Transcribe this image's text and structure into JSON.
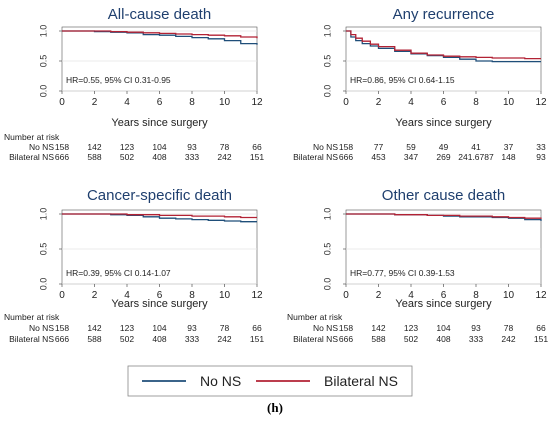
{
  "figure": {
    "caption": "(h)"
  },
  "legend": {
    "position": "bottom-center",
    "items": [
      {
        "label": "No NS",
        "color": "#1f4e79"
      },
      {
        "label": "Bilateral NS",
        "color": "#b22234"
      }
    ]
  },
  "chart_data": [
    {
      "type": "line",
      "title": "All-cause death",
      "xlabel": "Years since surgery",
      "ylabel": "",
      "xlim": [
        0,
        12
      ],
      "ylim": [
        0,
        1
      ],
      "xticks": [
        "0",
        "2",
        "4",
        "6",
        "8",
        "10",
        "12"
      ],
      "yticks": [
        "0.0",
        "0.5",
        "1.0"
      ],
      "annotation": "HR=0.55, 95% CI 0.31-0.95",
      "series": [
        {
          "name": "No NS",
          "color": "#1f4e79",
          "x": [
            0,
            1,
            2,
            3,
            4,
            5,
            6,
            7,
            8,
            9,
            10,
            11,
            12
          ],
          "y": [
            1.0,
            1.0,
            0.99,
            0.98,
            0.97,
            0.94,
            0.93,
            0.91,
            0.89,
            0.87,
            0.84,
            0.79,
            0.77
          ]
        },
        {
          "name": "Bilateral NS",
          "color": "#b22234",
          "x": [
            0,
            1,
            2,
            3,
            4,
            5,
            6,
            7,
            8,
            9,
            10,
            11,
            12
          ],
          "y": [
            1.0,
            1.0,
            1.0,
            0.99,
            0.98,
            0.97,
            0.96,
            0.95,
            0.94,
            0.93,
            0.92,
            0.9,
            0.88
          ]
        }
      ],
      "risk_table": {
        "heading": "Number at risk",
        "rows": [
          {
            "label": "No NS",
            "values": [
              "158",
              "142",
              "123",
              "104",
              "93",
              "78",
              "66"
            ]
          },
          {
            "label": "Bilateral NS",
            "values": [
              "666",
              "588",
              "502",
              "408",
              "333",
              "242",
              "151"
            ]
          }
        ]
      }
    },
    {
      "type": "line",
      "title": "Any recurrence",
      "xlabel": "Years since surgery",
      "ylabel": "",
      "xlim": [
        0,
        12
      ],
      "ylim": [
        0,
        1
      ],
      "xticks": [
        "0",
        "2",
        "4",
        "6",
        "8",
        "10",
        "12"
      ],
      "yticks": [
        "0.0",
        "0.5",
        "1.0"
      ],
      "annotation": "HR=0.86, 95% CI 0.64-1.15",
      "series": [
        {
          "name": "No NS",
          "color": "#1f4e79",
          "x": [
            0,
            0.3,
            0.6,
            1,
            1.5,
            2,
            3,
            4,
            5,
            6,
            7,
            8,
            9,
            10,
            11,
            12
          ],
          "y": [
            1.0,
            0.9,
            0.84,
            0.79,
            0.75,
            0.71,
            0.66,
            0.62,
            0.59,
            0.56,
            0.53,
            0.5,
            0.49,
            0.49,
            0.49,
            0.49
          ]
        },
        {
          "name": "Bilateral NS",
          "color": "#b22234",
          "x": [
            0,
            0.3,
            0.6,
            1,
            1.5,
            2,
            3,
            4,
            5,
            6,
            7,
            8,
            9,
            10,
            11,
            12
          ],
          "y": [
            1.0,
            0.94,
            0.88,
            0.83,
            0.78,
            0.74,
            0.68,
            0.63,
            0.6,
            0.58,
            0.57,
            0.56,
            0.55,
            0.55,
            0.54,
            0.54
          ]
        }
      ],
      "risk_table": {
        "heading": "",
        "rows": [
          {
            "label": "No NS",
            "values": [
              "158",
              "77",
              "59",
              "49",
              "41",
              "37",
              "33"
            ]
          },
          {
            "label": "Bilateral NS",
            "values": [
              "666",
              "453",
              "347",
              "269",
              "241.6787",
              "148",
              "93"
            ]
          }
        ]
      }
    },
    {
      "type": "line",
      "title": "Cancer-specific death",
      "xlabel": "Years since surgery",
      "ylabel": "",
      "xlim": [
        0,
        12
      ],
      "ylim": [
        0,
        1
      ],
      "xticks": [
        "0",
        "2",
        "4",
        "6",
        "8",
        "10",
        "12"
      ],
      "yticks": [
        "0.0",
        "0.5",
        "1.0"
      ],
      "annotation": "HR=0.39, 95% CI 0.14-1.07",
      "series": [
        {
          "name": "No NS",
          "color": "#1f4e79",
          "x": [
            0,
            1,
            2,
            3,
            4,
            5,
            6,
            7,
            8,
            9,
            10,
            11,
            12
          ],
          "y": [
            1.0,
            1.0,
            1.0,
            0.99,
            0.98,
            0.96,
            0.94,
            0.93,
            0.92,
            0.91,
            0.9,
            0.89,
            0.89
          ]
        },
        {
          "name": "Bilateral NS",
          "color": "#b22234",
          "x": [
            0,
            1,
            2,
            3,
            4,
            5,
            6,
            7,
            8,
            9,
            10,
            11,
            12
          ],
          "y": [
            1.0,
            1.0,
            1.0,
            1.0,
            0.99,
            0.99,
            0.98,
            0.98,
            0.97,
            0.97,
            0.96,
            0.95,
            0.95
          ]
        }
      ],
      "risk_table": {
        "heading": "Number at risk",
        "rows": [
          {
            "label": "No NS",
            "values": [
              "158",
              "142",
              "123",
              "104",
              "93",
              "78",
              "66"
            ]
          },
          {
            "label": "Bilateral NS",
            "values": [
              "666",
              "588",
              "502",
              "408",
              "333",
              "242",
              "151"
            ]
          }
        ]
      }
    },
    {
      "type": "line",
      "title": "Other cause death",
      "xlabel": "Years since surgery",
      "ylabel": "",
      "xlim": [
        0,
        12
      ],
      "ylim": [
        0,
        1
      ],
      "xticks": [
        "0",
        "2",
        "4",
        "6",
        "8",
        "10",
        "12"
      ],
      "yticks": [
        "0.0",
        "0.5",
        "1.0"
      ],
      "annotation": "HR=0.77, 95% CI 0.39-1.53",
      "series": [
        {
          "name": "No NS",
          "color": "#1f4e79",
          "x": [
            0,
            1,
            2,
            3,
            4,
            5,
            6,
            7,
            8,
            9,
            10,
            11,
            12
          ],
          "y": [
            1.0,
            1.0,
            1.0,
            0.99,
            0.99,
            0.98,
            0.97,
            0.96,
            0.96,
            0.95,
            0.94,
            0.92,
            0.9
          ]
        },
        {
          "name": "Bilateral NS",
          "color": "#b22234",
          "x": [
            0,
            1,
            2,
            3,
            4,
            5,
            6,
            7,
            8,
            9,
            10,
            11,
            12
          ],
          "y": [
            1.0,
            1.0,
            1.0,
            0.99,
            0.99,
            0.98,
            0.98,
            0.97,
            0.97,
            0.96,
            0.95,
            0.94,
            0.93
          ]
        }
      ],
      "risk_table": {
        "heading": "Number at risk",
        "rows": [
          {
            "label": "No NS",
            "values": [
              "158",
              "142",
              "123",
              "104",
              "93",
              "78",
              "66"
            ]
          },
          {
            "label": "Bilateral NS",
            "values": [
              "666",
              "588",
              "502",
              "408",
              "333",
              "242",
              "151"
            ]
          }
        ]
      }
    }
  ]
}
